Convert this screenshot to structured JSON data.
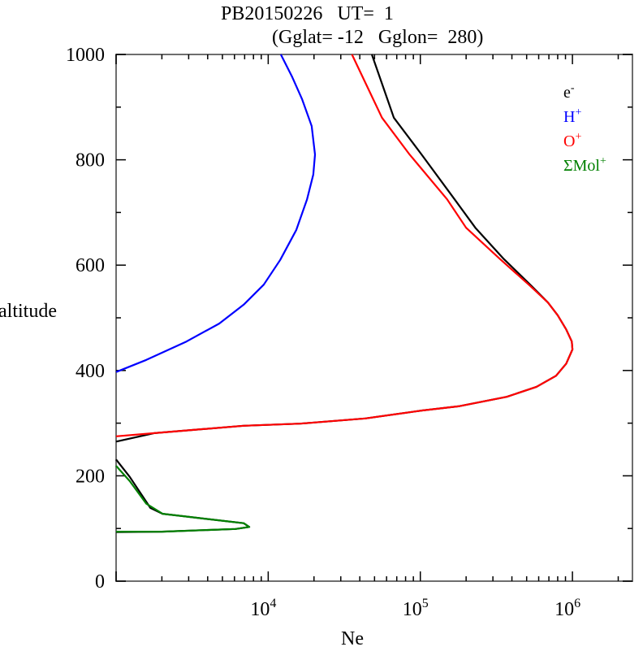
{
  "chart_data": {
    "type": "line",
    "title": "PB20150226   UT=  1",
    "subtitle": "(Gglat= -12   Gglon=  280)",
    "xlabel": "Ne",
    "ylabel": "altitude",
    "xscale": "log",
    "xlim": [
      1000,
      2480000
    ],
    "ylim": [
      0,
      1000
    ],
    "x_ticks": [
      {
        "value": 10000,
        "base": "10",
        "exp": "4"
      },
      {
        "value": 100000,
        "base": "10",
        "exp": "5"
      },
      {
        "value": 1000000,
        "base": "10",
        "exp": "6"
      }
    ],
    "y_ticks": [
      0,
      200,
      400,
      600,
      800,
      1000
    ],
    "grid": false,
    "legend_position": "top-right",
    "series": [
      {
        "name": "e",
        "sup": "-",
        "color": "#000000",
        "segments": [
          [
            [
              1000,
              265
            ],
            [
              1780,
              281
            ],
            [
              6890,
              295
            ],
            [
              16200,
              299
            ],
            [
              43500,
              309
            ],
            [
              103000,
              324
            ],
            [
              178000,
              332
            ],
            [
              370000,
              350
            ],
            [
              580000,
              369
            ],
            [
              780000,
              390
            ],
            [
              910000,
              413
            ],
            [
              1000000,
              440
            ],
            [
              990000,
              455
            ],
            [
              910000,
              478
            ],
            [
              800000,
              505
            ],
            [
              690000,
              529
            ],
            [
              540000,
              560
            ],
            [
              350000,
              613
            ],
            [
              230000,
              671
            ],
            [
              168000,
              725
            ],
            [
              102000,
              810
            ],
            [
              67000,
              880
            ],
            [
              48000,
              1000
            ]
          ],
          [
            [
              1000,
              231
            ],
            [
              1230,
              198
            ],
            [
              1680,
              139
            ],
            [
              2020,
              128
            ],
            [
              6900,
              110
            ],
            [
              7500,
              103
            ],
            [
              6100,
              99
            ],
            [
              2000,
              94
            ],
            [
              1000,
              93
            ]
          ]
        ]
      },
      {
        "name": "H",
        "sup": "+",
        "color": "#0000ff",
        "segments": [
          [
            [
              1000,
              397
            ],
            [
              1580,
              420
            ],
            [
              2900,
              455
            ],
            [
              4760,
              489
            ],
            [
              6900,
              525
            ],
            [
              9350,
              563
            ],
            [
              12000,
              610
            ],
            [
              15300,
              667
            ],
            [
              18000,
              725
            ],
            [
              19800,
              772
            ],
            [
              20300,
              810
            ],
            [
              19300,
              864
            ],
            [
              16700,
              915
            ],
            [
              14400,
              957
            ],
            [
              12100,
              1000
            ]
          ]
        ]
      },
      {
        "name": "O",
        "sup": "+",
        "color": "#ff0000",
        "segments": [
          [
            [
              1000,
              275
            ],
            [
              1780,
              281
            ],
            [
              6890,
              295
            ],
            [
              16200,
              299
            ],
            [
              43500,
              309
            ],
            [
              103000,
              324
            ],
            [
              178000,
              332
            ],
            [
              370000,
              350
            ],
            [
              580000,
              369
            ],
            [
              780000,
              390
            ],
            [
              910000,
              413
            ],
            [
              1000000,
              440
            ],
            [
              990000,
              455
            ],
            [
              910000,
              478
            ],
            [
              800000,
              505
            ],
            [
              690000,
              529
            ],
            [
              530000,
              560
            ],
            [
              330000,
              613
            ],
            [
              200000,
              671
            ],
            [
              150000,
              725
            ],
            [
              85000,
              810
            ],
            [
              56000,
              880
            ],
            [
              35500,
              1000
            ]
          ]
        ]
      },
      {
        "name": "ΣMol",
        "sup": "+",
        "color": "#008000",
        "segments": [
          [
            [
              1000,
              219
            ],
            [
              1230,
              190
            ],
            [
              1580,
              147
            ],
            [
              2020,
              128
            ],
            [
              6900,
              110
            ],
            [
              7500,
              103
            ],
            [
              6100,
              99
            ],
            [
              2000,
              94
            ],
            [
              1000,
              94
            ]
          ]
        ]
      }
    ]
  }
}
